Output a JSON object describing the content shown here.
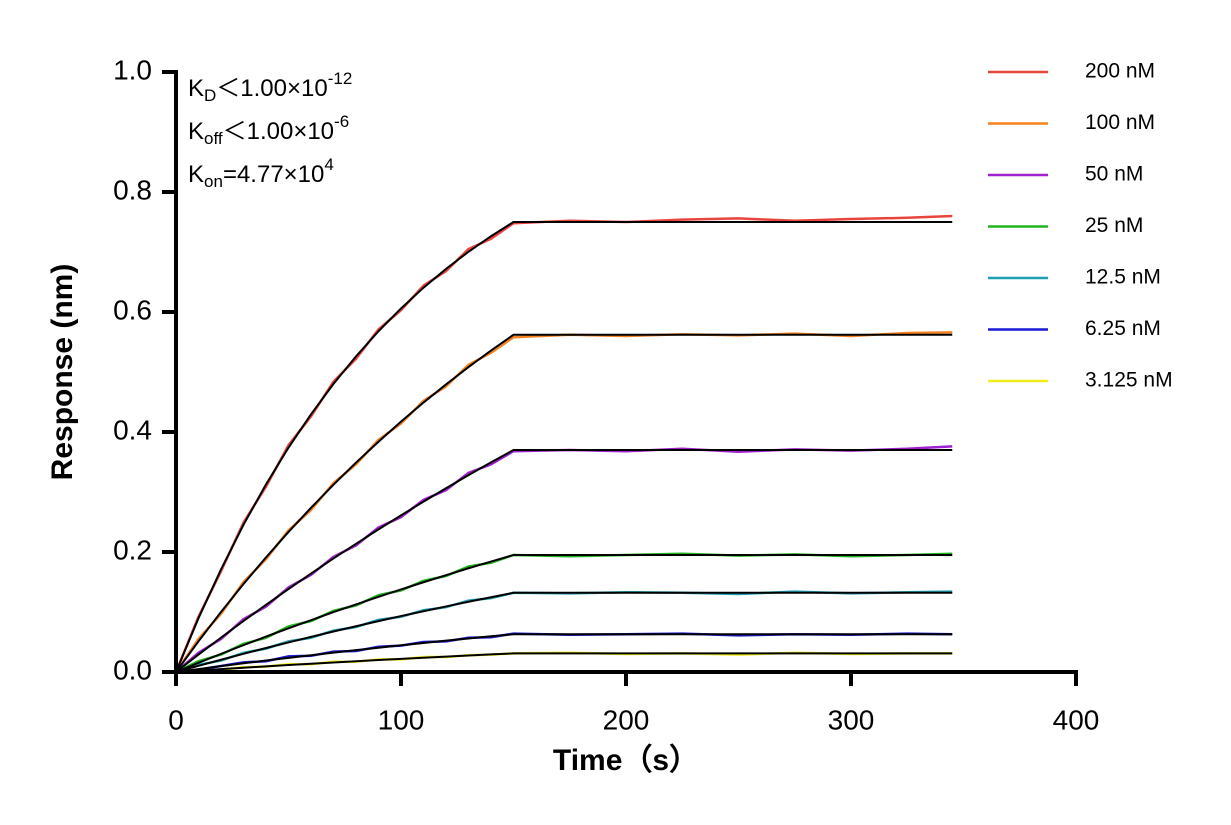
{
  "chart_data": {
    "type": "line",
    "x_label": "Time（s）",
    "y_label": "Response (nm)",
    "xlim": [
      0,
      400
    ],
    "ylim": [
      0,
      1
    ],
    "xticks": [
      0,
      100,
      200,
      300,
      400
    ],
    "yticks": [
      {
        "value": 0,
        "label": "0.0"
      },
      0.2,
      0.4,
      0.6,
      0.8,
      {
        "value": 1,
        "label": "1.0"
      }
    ],
    "annotations": [
      {
        "base": "K",
        "sub": "D",
        "text": "＜1.00×10",
        "sup": "-12"
      },
      {
        "base": "K",
        "sub": "off",
        "text": "＜1.00×10",
        "sup": "-6"
      },
      {
        "base": "K",
        "sub": "on",
        "text": "=4.77×10",
        "sup": "4"
      }
    ],
    "x": [
      0,
      10,
      20,
      30,
      40,
      50,
      60,
      70,
      80,
      90,
      100,
      110,
      120,
      130,
      140,
      150,
      175,
      200,
      225,
      250,
      275,
      300,
      325,
      345
    ],
    "fit_x": [
      0,
      10,
      20,
      30,
      40,
      50,
      60,
      70,
      80,
      90,
      100,
      110,
      120,
      130,
      140,
      150,
      345
    ],
    "fit_color": "#000000",
    "series": [
      {
        "name": "200 nM",
        "color": "#e8453c",
        "values": [
          0,
          0.092,
          0.168,
          0.249,
          0.309,
          0.378,
          0.426,
          0.484,
          0.522,
          0.571,
          0.603,
          0.644,
          0.668,
          0.705,
          0.722,
          0.748,
          0.752,
          0.75,
          0.754,
          0.756,
          0.752,
          0.755,
          0.757,
          0.76
        ],
        "fit": [
          0,
          0.0897,
          0.171,
          0.2453,
          0.3126,
          0.3739,
          0.4295,
          0.4802,
          0.5261,
          0.5679,
          0.6059,
          0.6405,
          0.6718,
          0.7004,
          0.7263,
          0.75,
          0.75
        ]
      },
      {
        "name": "100 nM",
        "color": "#f5821f",
        "values": [
          0,
          0.055,
          0.097,
          0.15,
          0.188,
          0.236,
          0.27,
          0.315,
          0.346,
          0.387,
          0.414,
          0.452,
          0.476,
          0.512,
          0.532,
          0.558,
          0.562,
          0.56,
          0.563,
          0.561,
          0.564,
          0.56,
          0.565,
          0.566
        ],
        "fit": [
          0,
          0.0512,
          0.1001,
          0.1466,
          0.191,
          0.2334,
          0.2737,
          0.3122,
          0.3489,
          0.3838,
          0.4173,
          0.4491,
          0.4793,
          0.5082,
          0.5358,
          0.562,
          0.562
        ]
      },
      {
        "name": "50 nM",
        "color": "#a020d0",
        "values": [
          0,
          0.032,
          0.055,
          0.088,
          0.109,
          0.141,
          0.162,
          0.192,
          0.211,
          0.241,
          0.258,
          0.287,
          0.303,
          0.332,
          0.346,
          0.368,
          0.37,
          0.368,
          0.372,
          0.367,
          0.371,
          0.369,
          0.372,
          0.376
        ],
        "fit": [
          0,
          0.029,
          0.0573,
          0.085,
          0.112,
          0.1383,
          0.164,
          0.1893,
          0.2137,
          0.2377,
          0.2611,
          0.2839,
          0.3063,
          0.3281,
          0.3493,
          0.37,
          0.37
        ]
      },
      {
        "name": "25 nM",
        "color": "#22b41e",
        "values": [
          0,
          0.018,
          0.029,
          0.047,
          0.057,
          0.076,
          0.085,
          0.102,
          0.111,
          0.128,
          0.136,
          0.152,
          0.16,
          0.176,
          0.182,
          0.195,
          0.193,
          0.195,
          0.197,
          0.194,
          0.196,
          0.193,
          0.195,
          0.197
        ],
        "fit": [
          0,
          0.0153,
          0.0302,
          0.0448,
          0.059,
          0.0729,
          0.0864,
          0.0998,
          0.1126,
          0.1253,
          0.1376,
          0.1496,
          0.1614,
          0.1729,
          0.1841,
          0.195,
          0.195
        ]
      },
      {
        "name": "12.5 nM",
        "color": "#1f9fb4",
        "values": [
          0,
          0.012,
          0.019,
          0.032,
          0.039,
          0.051,
          0.057,
          0.069,
          0.075,
          0.087,
          0.092,
          0.103,
          0.108,
          0.119,
          0.123,
          0.132,
          0.131,
          0.133,
          0.132,
          0.13,
          0.134,
          0.131,
          0.133,
          0.134
        ],
        "fit": [
          0,
          0.0103,
          0.0204,
          0.0303,
          0.04,
          0.0493,
          0.0585,
          0.0675,
          0.0762,
          0.0848,
          0.0932,
          0.1013,
          0.1093,
          0.1171,
          0.1246,
          0.132,
          0.132
        ]
      },
      {
        "name": "6.25 nM",
        "color": "#1a1ad2",
        "values": [
          0,
          0.004,
          0.01,
          0.016,
          0.018,
          0.026,
          0.027,
          0.034,
          0.035,
          0.042,
          0.044,
          0.05,
          0.051,
          0.057,
          0.058,
          0.064,
          0.062,
          0.063,
          0.064,
          0.061,
          0.063,
          0.062,
          0.064,
          0.063
        ],
        "fit": [
          0,
          0.0049,
          0.0098,
          0.0145,
          0.0191,
          0.0235,
          0.0279,
          0.0322,
          0.0364,
          0.0405,
          0.0445,
          0.0483,
          0.0522,
          0.0559,
          0.0595,
          0.063,
          0.063
        ]
      },
      {
        "name": "3.125 nM",
        "color": "#f2ec1a",
        "values": [
          0,
          0.002,
          0.004,
          0.008,
          0.009,
          0.013,
          0.013,
          0.017,
          0.017,
          0.021,
          0.021,
          0.025,
          0.025,
          0.028,
          0.029,
          0.031,
          0.032,
          0.03,
          0.031,
          0.029,
          0.032,
          0.03,
          0.031,
          0.031
        ],
        "fit": [
          0,
          0.0024,
          0.0048,
          0.0071,
          0.0094,
          0.0116,
          0.0137,
          0.0159,
          0.0179,
          0.0199,
          0.0219,
          0.0238,
          0.0257,
          0.0275,
          0.0293,
          0.031,
          0.031
        ]
      }
    ]
  }
}
